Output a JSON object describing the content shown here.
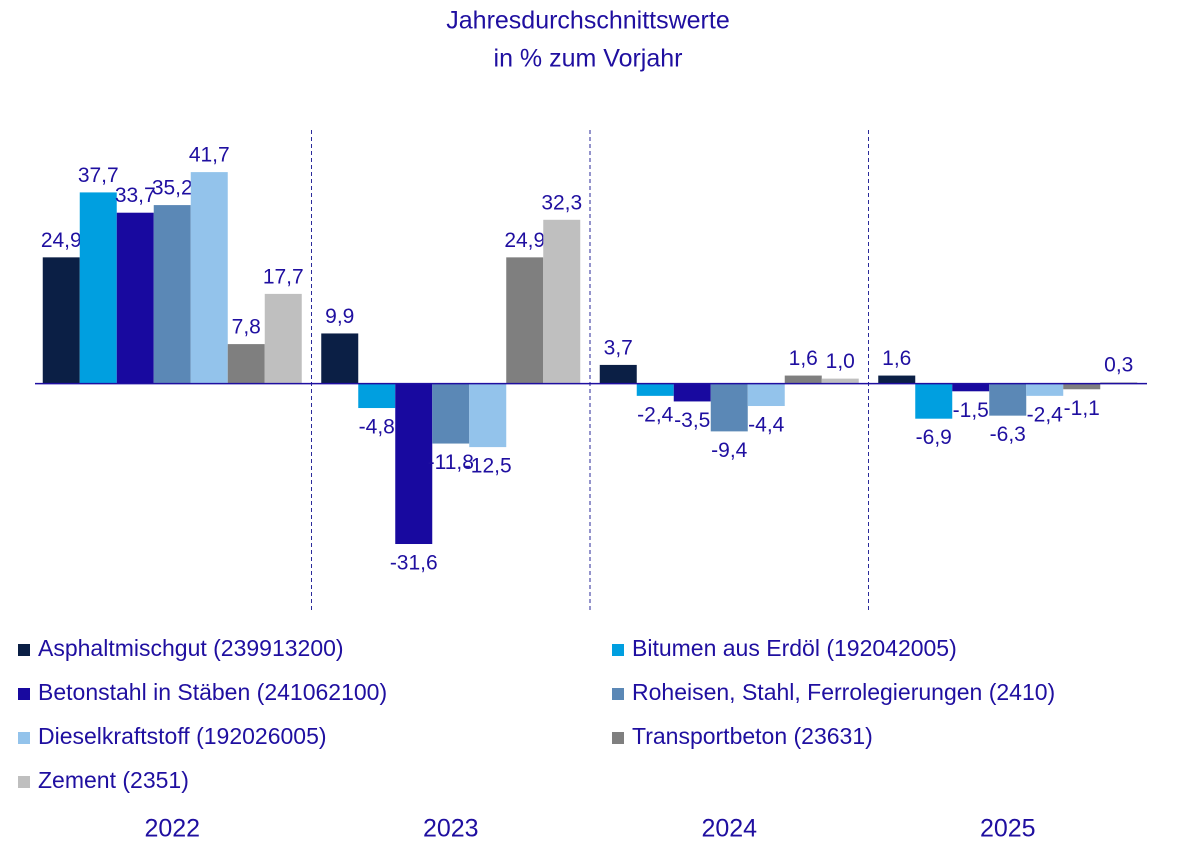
{
  "chart_data": {
    "type": "bar",
    "title": "Jahresdurchschnittswerte",
    "subtitle": "in % zum Vorjahr",
    "categories": [
      "2022",
      "2023",
      "2024",
      "2025"
    ],
    "ylim": [
      -45,
      50
    ],
    "legend": "bottom",
    "series": [
      {
        "name": "Asphaltmischgut (239913200)",
        "color": "#0b1f45",
        "values": [
          24.9,
          9.9,
          3.7,
          1.6
        ],
        "value_labels": [
          "24,9",
          "9,9",
          "3,7",
          "1,6"
        ]
      },
      {
        "name": "Bitumen aus Erdöl (192042005)",
        "color": "#009fe0",
        "values": [
          37.7,
          -4.8,
          -2.4,
          -6.9
        ],
        "value_labels": [
          "37,7",
          "-4,8",
          "-2,4",
          "-6,9"
        ]
      },
      {
        "name": "Betonstahl in Stäben (241062100)",
        "color": "#18099f",
        "values": [
          33.7,
          -31.6,
          -3.5,
          -1.5
        ],
        "value_labels": [
          "33,7",
          "-31,6",
          "-3,5",
          "-1,5"
        ]
      },
      {
        "name": "Roheisen, Stahl, Ferrolegierungen (2410)",
        "color": "#5b88b6",
        "values": [
          35.2,
          -11.8,
          -9.4,
          -6.3
        ],
        "value_labels": [
          "35,2",
          "-11,8",
          "-9,4",
          "-6,3"
        ]
      },
      {
        "name": "Dieselkraftstoff (192026005)",
        "color": "#93c3eb",
        "values": [
          41.7,
          -12.5,
          -4.4,
          -2.4
        ],
        "value_labels": [
          "41,7",
          "-12,5",
          "-4,4",
          "-2,4"
        ]
      },
      {
        "name": "Transportbeton (23631)",
        "color": "#7f7f7f",
        "values": [
          7.8,
          24.9,
          1.6,
          -1.1
        ],
        "value_labels": [
          "7,8",
          "24,9",
          "1,6",
          "-1,1"
        ]
      },
      {
        "name": "Zement (2351)",
        "color": "#bfbfbf",
        "values": [
          17.7,
          32.3,
          1.0,
          0.3
        ],
        "value_labels": [
          "17,7",
          "32,3",
          "1,0",
          "0,3"
        ]
      }
    ]
  }
}
